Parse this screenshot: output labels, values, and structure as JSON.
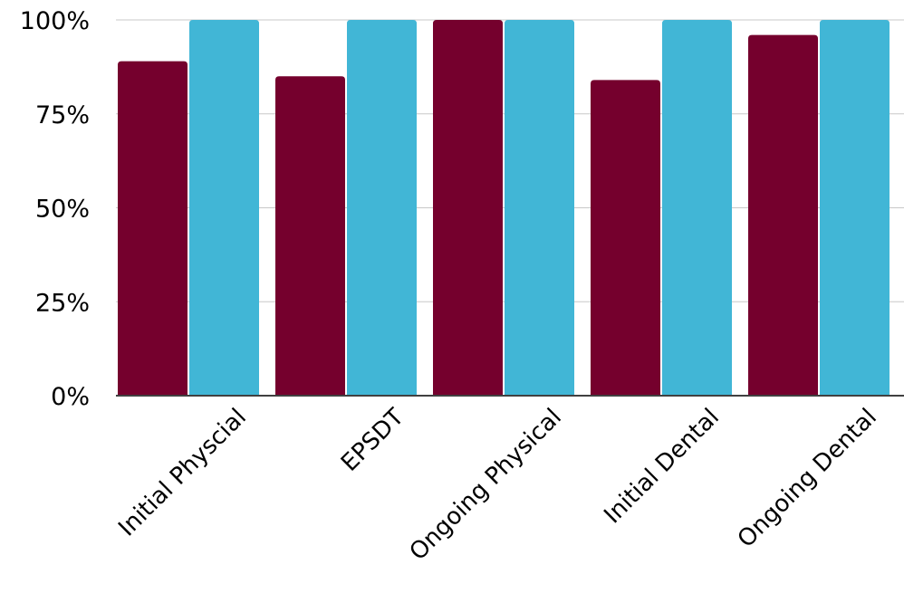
{
  "chart_data": {
    "type": "bar",
    "title": "",
    "xlabel": "",
    "ylabel": "",
    "categories": [
      "Initial Physcial",
      "EPSDT",
      "Ongoing Physical",
      "Initial Dental",
      "Ongoing Dental"
    ],
    "series": [
      {
        "values": [
          89,
          85,
          100,
          84,
          96
        ],
        "color": "#75002d"
      },
      {
        "values": [
          100,
          100,
          100,
          100,
          100
        ],
        "color": "#41b6d6"
      }
    ],
    "ylim": [
      0,
      100
    ],
    "yticks": [
      0,
      25,
      50,
      75,
      100
    ],
    "ytick_labels": [
      "0%",
      "25%",
      "50%",
      "75%",
      "100%"
    ],
    "grid": true,
    "legend": "none",
    "colors": {
      "grid": "#c8c8c8",
      "axis": "#404040"
    }
  }
}
